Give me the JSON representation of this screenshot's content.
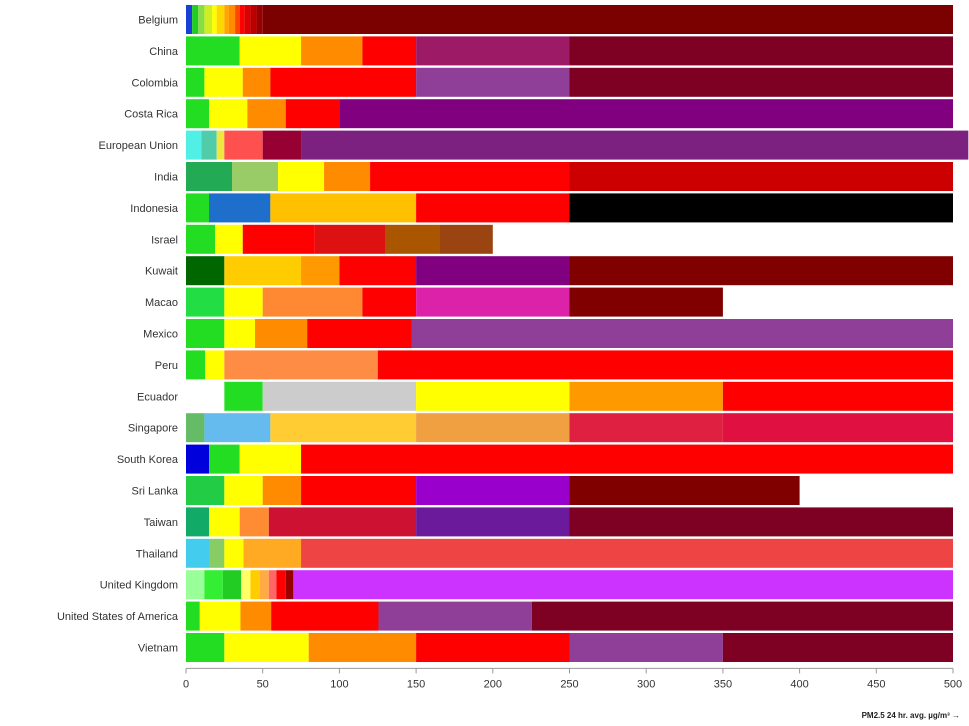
{
  "chart_data": {
    "type": "bar",
    "orientation": "horizontal",
    "stacked": true,
    "title": "",
    "xlabel": "PM2.5 24 hr. avg. µg/m³ →",
    "ylabel": "",
    "xlim": [
      0,
      500
    ],
    "x_ticks": [
      0,
      50,
      100,
      150,
      200,
      250,
      300,
      350,
      400,
      450,
      500
    ],
    "grid": false,
    "legend": "none",
    "categories": [
      "Belgium",
      "China",
      "Colombia",
      "Costa Rica",
      "European Union",
      "India",
      "Indonesia",
      "Israel",
      "Kuwait",
      "Macao",
      "Mexico",
      "Peru",
      "Ecuador",
      "Singapore",
      "South Korea",
      "Sri Lanka",
      "Taiwan",
      "Thailand",
      "United Kingdom",
      "United States of America",
      "Vietnam"
    ],
    "rows": [
      {
        "category": "Belgium",
        "segments": [
          {
            "start": 0,
            "end": 4,
            "color": "#1a3fd6"
          },
          {
            "start": 4,
            "end": 8,
            "color": "#22cc22"
          },
          {
            "start": 8,
            "end": 12,
            "color": "#88dd44"
          },
          {
            "start": 12,
            "end": 17,
            "color": "#ccee22"
          },
          {
            "start": 17,
            "end": 20,
            "color": "#ffff00"
          },
          {
            "start": 20,
            "end": 25,
            "color": "#ffd700"
          },
          {
            "start": 25,
            "end": 28,
            "color": "#ffa500"
          },
          {
            "start": 28,
            "end": 32,
            "color": "#ff8c00"
          },
          {
            "start": 32,
            "end": 35,
            "color": "#ff4500"
          },
          {
            "start": 35,
            "end": 38,
            "color": "#ff0000"
          },
          {
            "start": 38,
            "end": 42,
            "color": "#dd0000"
          },
          {
            "start": 42,
            "end": 46,
            "color": "#bb0000"
          },
          {
            "start": 46,
            "end": 50,
            "color": "#990000"
          },
          {
            "start": 50,
            "end": 500,
            "color": "#7b0000"
          }
        ]
      },
      {
        "category": "China",
        "segments": [
          {
            "start": 0,
            "end": 35,
            "color": "#22dd22"
          },
          {
            "start": 35,
            "end": 75,
            "color": "#ffff00"
          },
          {
            "start": 75,
            "end": 115,
            "color": "#ff8c00"
          },
          {
            "start": 115,
            "end": 150,
            "color": "#ff0000"
          },
          {
            "start": 150,
            "end": 250,
            "color": "#9c1a66"
          },
          {
            "start": 250,
            "end": 500,
            "color": "#7e0023"
          }
        ]
      },
      {
        "category": "Colombia",
        "segments": [
          {
            "start": 0,
            "end": 12,
            "color": "#22dd22"
          },
          {
            "start": 12,
            "end": 37,
            "color": "#ffff00"
          },
          {
            "start": 37,
            "end": 55,
            "color": "#ff8c00"
          },
          {
            "start": 55,
            "end": 150,
            "color": "#ff0000"
          },
          {
            "start": 150,
            "end": 250,
            "color": "#8f3f97"
          },
          {
            "start": 250,
            "end": 500,
            "color": "#7e0023"
          }
        ]
      },
      {
        "category": "Costa Rica",
        "segments": [
          {
            "start": 0,
            "end": 15,
            "color": "#22dd22"
          },
          {
            "start": 15,
            "end": 40,
            "color": "#ffff00"
          },
          {
            "start": 40,
            "end": 65,
            "color": "#ff8c00"
          },
          {
            "start": 65,
            "end": 100,
            "color": "#ff0000"
          },
          {
            "start": 100,
            "end": 500,
            "color": "#800080"
          }
        ]
      },
      {
        "category": "European Union",
        "segments": [
          {
            "start": 0,
            "end": 10,
            "color": "#50f0e6"
          },
          {
            "start": 10,
            "end": 20,
            "color": "#50ccaa"
          },
          {
            "start": 20,
            "end": 25,
            "color": "#f0e641"
          },
          {
            "start": 25,
            "end": 50,
            "color": "#ff5050"
          },
          {
            "start": 50,
            "end": 75,
            "color": "#960032"
          },
          {
            "start": 75,
            "end": 510,
            "color": "#7d2181"
          }
        ]
      },
      {
        "category": "India",
        "segments": [
          {
            "start": 0,
            "end": 30,
            "color": "#22aa55"
          },
          {
            "start": 30,
            "end": 60,
            "color": "#99cc66"
          },
          {
            "start": 60,
            "end": 90,
            "color": "#ffff00"
          },
          {
            "start": 90,
            "end": 120,
            "color": "#ff8c00"
          },
          {
            "start": 120,
            "end": 250,
            "color": "#ff0000"
          },
          {
            "start": 250,
            "end": 500,
            "color": "#cc0000"
          }
        ]
      },
      {
        "category": "Indonesia",
        "segments": [
          {
            "start": 0,
            "end": 15,
            "color": "#22dd22"
          },
          {
            "start": 15,
            "end": 55,
            "color": "#1e6fcc"
          },
          {
            "start": 55,
            "end": 150,
            "color": "#ffc000"
          },
          {
            "start": 150,
            "end": 250,
            "color": "#ff0000"
          },
          {
            "start": 250,
            "end": 500,
            "color": "#000000"
          }
        ]
      },
      {
        "category": "Israel",
        "segments": [
          {
            "start": 0,
            "end": 19,
            "color": "#22dd22"
          },
          {
            "start": 19,
            "end": 37,
            "color": "#ffff00"
          },
          {
            "start": 37,
            "end": 84,
            "color": "#ff0000"
          },
          {
            "start": 84,
            "end": 130,
            "color": "#dd1111"
          },
          {
            "start": 130,
            "end": 165,
            "color": "#aa5500"
          },
          {
            "start": 165,
            "end": 200,
            "color": "#994411"
          }
        ]
      },
      {
        "category": "Kuwait",
        "segments": [
          {
            "start": 0,
            "end": 25,
            "color": "#006600"
          },
          {
            "start": 25,
            "end": 75,
            "color": "#ffcc00"
          },
          {
            "start": 75,
            "end": 100,
            "color": "#ff9900"
          },
          {
            "start": 100,
            "end": 150,
            "color": "#ff0000"
          },
          {
            "start": 150,
            "end": 250,
            "color": "#800080"
          },
          {
            "start": 250,
            "end": 500,
            "color": "#800000"
          }
        ]
      },
      {
        "category": "Macao",
        "segments": [
          {
            "start": 0,
            "end": 25,
            "color": "#22dd44"
          },
          {
            "start": 25,
            "end": 50,
            "color": "#ffff00"
          },
          {
            "start": 50,
            "end": 115,
            "color": "#ff8833"
          },
          {
            "start": 115,
            "end": 150,
            "color": "#ff0000"
          },
          {
            "start": 150,
            "end": 250,
            "color": "#dd22aa"
          },
          {
            "start": 250,
            "end": 350,
            "color": "#800000"
          }
        ]
      },
      {
        "category": "Mexico",
        "segments": [
          {
            "start": 0,
            "end": 25,
            "color": "#22dd22"
          },
          {
            "start": 25,
            "end": 45,
            "color": "#ffff00"
          },
          {
            "start": 45,
            "end": 79,
            "color": "#ff8c00"
          },
          {
            "start": 79,
            "end": 147,
            "color": "#ff0000"
          },
          {
            "start": 147,
            "end": 500,
            "color": "#8f3f97"
          }
        ]
      },
      {
        "category": "Peru",
        "segments": [
          {
            "start": 0,
            "end": 12.5,
            "color": "#22dd22"
          },
          {
            "start": 12.5,
            "end": 25,
            "color": "#ffff00"
          },
          {
            "start": 25,
            "end": 125,
            "color": "#ff8c44"
          },
          {
            "start": 125,
            "end": 500,
            "color": "#ff0000"
          }
        ]
      },
      {
        "category": "Ecuador",
        "segments": [
          {
            "start": 0,
            "end": 25,
            "color": "#ffffff"
          },
          {
            "start": 25,
            "end": 50,
            "color": "#22dd22"
          },
          {
            "start": 50,
            "end": 150,
            "color": "#cccccc"
          },
          {
            "start": 150,
            "end": 250,
            "color": "#ffff00"
          },
          {
            "start": 250,
            "end": 350,
            "color": "#ff9900"
          },
          {
            "start": 350,
            "end": 500,
            "color": "#ff0000"
          }
        ]
      },
      {
        "category": "Singapore",
        "segments": [
          {
            "start": 0,
            "end": 12,
            "color": "#66bb66"
          },
          {
            "start": 12,
            "end": 55,
            "color": "#66bbee"
          },
          {
            "start": 55,
            "end": 150,
            "color": "#ffcc33"
          },
          {
            "start": 150,
            "end": 250,
            "color": "#f0a040"
          },
          {
            "start": 250,
            "end": 350,
            "color": "#e02040"
          },
          {
            "start": 350,
            "end": 500,
            "color": "#e01040"
          }
        ]
      },
      {
        "category": "South Korea",
        "segments": [
          {
            "start": 0,
            "end": 15,
            "color": "#0000dd"
          },
          {
            "start": 15,
            "end": 35,
            "color": "#22dd22"
          },
          {
            "start": 35,
            "end": 75,
            "color": "#ffff00"
          },
          {
            "start": 75,
            "end": 500,
            "color": "#ff0000"
          }
        ]
      },
      {
        "category": "Sri Lanka",
        "segments": [
          {
            "start": 0,
            "end": 25,
            "color": "#22cc44"
          },
          {
            "start": 25,
            "end": 50,
            "color": "#ffff00"
          },
          {
            "start": 50,
            "end": 75,
            "color": "#ff8c00"
          },
          {
            "start": 75,
            "end": 150,
            "color": "#ff0000"
          },
          {
            "start": 150,
            "end": 250,
            "color": "#9900cc"
          },
          {
            "start": 250,
            "end": 400,
            "color": "#800000"
          }
        ]
      },
      {
        "category": "Taiwan",
        "segments": [
          {
            "start": 0,
            "end": 15,
            "color": "#11aa66"
          },
          {
            "start": 15,
            "end": 35,
            "color": "#ffff00"
          },
          {
            "start": 35,
            "end": 54,
            "color": "#ff8c33"
          },
          {
            "start": 54,
            "end": 150,
            "color": "#cc1133"
          },
          {
            "start": 150,
            "end": 250,
            "color": "#6a1a9a"
          },
          {
            "start": 250,
            "end": 500,
            "color": "#7e0023"
          }
        ]
      },
      {
        "category": "Thailand",
        "segments": [
          {
            "start": 0,
            "end": 15,
            "color": "#44ccee"
          },
          {
            "start": 15,
            "end": 25,
            "color": "#88cc66"
          },
          {
            "start": 25,
            "end": 37.5,
            "color": "#ffff00"
          },
          {
            "start": 37.5,
            "end": 75,
            "color": "#ffaa22"
          },
          {
            "start": 75,
            "end": 500,
            "color": "#ee4444"
          }
        ]
      },
      {
        "category": "United Kingdom",
        "segments": [
          {
            "start": 0,
            "end": 12,
            "color": "#99ff99"
          },
          {
            "start": 12,
            "end": 24,
            "color": "#33ee33"
          },
          {
            "start": 24,
            "end": 36,
            "color": "#22cc22"
          },
          {
            "start": 36,
            "end": 42,
            "color": "#ffff66"
          },
          {
            "start": 42,
            "end": 48,
            "color": "#ffcc00"
          },
          {
            "start": 48,
            "end": 54,
            "color": "#ffaa44"
          },
          {
            "start": 54,
            "end": 59,
            "color": "#ff6666"
          },
          {
            "start": 59,
            "end": 65,
            "color": "#ff0000"
          },
          {
            "start": 65,
            "end": 70,
            "color": "#990000"
          },
          {
            "start": 70,
            "end": 500,
            "color": "#cc33ff"
          }
        ]
      },
      {
        "category": "United States of America",
        "segments": [
          {
            "start": 0,
            "end": 9,
            "color": "#22dd22"
          },
          {
            "start": 9,
            "end": 35.5,
            "color": "#ffff00"
          },
          {
            "start": 35.5,
            "end": 55.5,
            "color": "#ff8c00"
          },
          {
            "start": 55.5,
            "end": 125.5,
            "color": "#ff0000"
          },
          {
            "start": 125.5,
            "end": 225.5,
            "color": "#8f3f97"
          },
          {
            "start": 225.5,
            "end": 500,
            "color": "#7e0023"
          }
        ]
      },
      {
        "category": "Vietnam",
        "segments": [
          {
            "start": 0,
            "end": 25,
            "color": "#22dd22"
          },
          {
            "start": 25,
            "end": 80,
            "color": "#ffff00"
          },
          {
            "start": 80,
            "end": 150,
            "color": "#ff8c00"
          },
          {
            "start": 150,
            "end": 250,
            "color": "#ff0000"
          },
          {
            "start": 250,
            "end": 350,
            "color": "#8f3f97"
          },
          {
            "start": 350,
            "end": 500,
            "color": "#7e0023"
          }
        ]
      }
    ]
  }
}
